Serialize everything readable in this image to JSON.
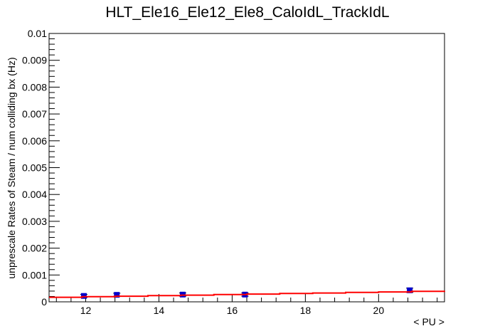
{
  "chart_data": {
    "type": "scatter",
    "title": "HLT_Ele16_Ele12_Ele8_CaloIdL_TrackIdL",
    "xlabel": "< PU >",
    "ylabel": "unprescale Rates of Steam / num colliding bx (Hz)",
    "xlim": [
      11.0,
      21.8
    ],
    "ylim": [
      0,
      0.01
    ],
    "x_ticks": [
      12,
      14,
      16,
      18,
      20
    ],
    "x_tick_labels": [
      "12",
      "14",
      "16",
      "18",
      "20"
    ],
    "y_ticks": [
      0,
      0.001,
      0.002,
      0.003,
      0.004,
      0.005,
      0.006,
      0.007,
      0.008,
      0.009,
      0.01
    ],
    "y_tick_labels": [
      "0",
      "0.001",
      "0.002",
      "0.003",
      "0.004",
      "0.005",
      "0.006",
      "0.007",
      "0.008",
      "0.009",
      "0.01"
    ],
    "grid": false,
    "legend": "none",
    "series": [
      {
        "kind": "points",
        "color": "#0000cc",
        "x": [
          11.95,
          12.85,
          14.65,
          16.35,
          20.85
        ],
        "y": [
          0.00022,
          0.00026,
          0.00027,
          0.00027,
          0.00043
        ],
        "yerr": [
          6e-05,
          6e-05,
          6e-05,
          6e-05,
          8e-05
        ]
      },
      {
        "kind": "fit-line",
        "color": "#ff0000",
        "x": [
          11.0,
          21.8
        ],
        "y": [
          0.00017,
          0.00041
        ]
      }
    ]
  }
}
